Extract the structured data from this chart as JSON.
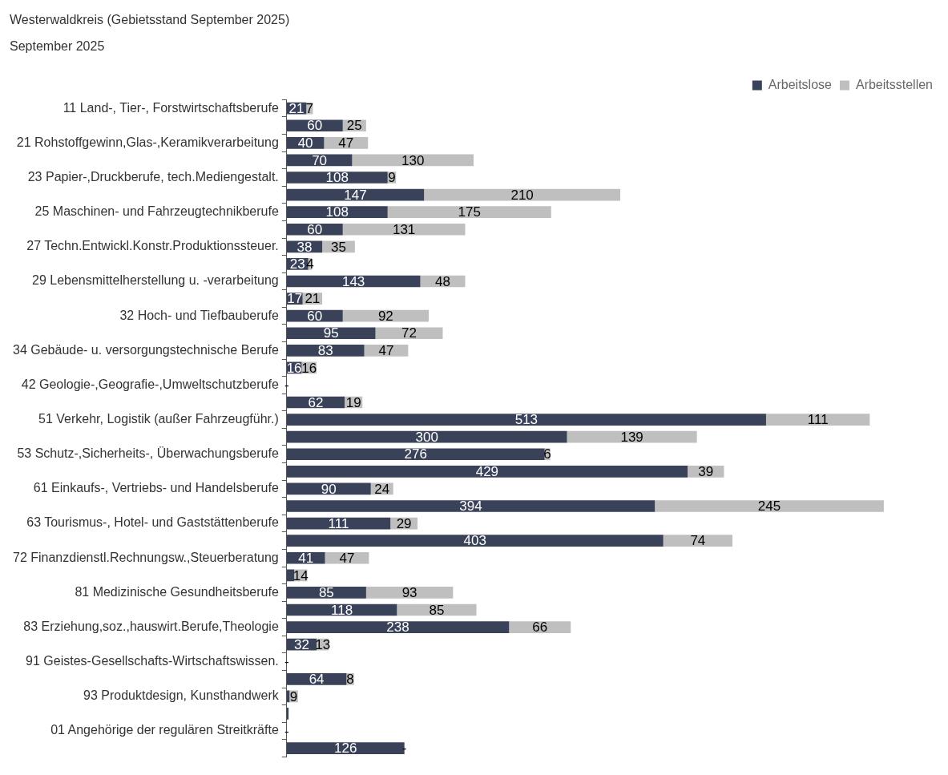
{
  "chart_data": {
    "type": "bar",
    "orientation": "horizontal",
    "stacked": true,
    "legend": "top right",
    "tick_labels": "y",
    "title": "Westerwaldkreis (Gebietsstand September 2025)",
    "subtitle": "September 2025",
    "categories": [
      "11 Land-, Tier-, Forstwirtschaftsberufe",
      null,
      "21 Rohstoffgewinn,Glas-,Keramikverarbeitung",
      null,
      "23 Papier-,Druckberufe, tech.Mediengestalt.",
      null,
      "25 Maschinen- und Fahrzeugtechnikberufe",
      null,
      "27 Techn.Entwickl.Konstr.Produktionssteuer.",
      null,
      "29 Lebensmittelherstellung u. -verarbeitung",
      null,
      "32 Hoch- und Tiefbauberufe",
      null,
      "34 Gebäude- u. versorgungstechnische Berufe",
      null,
      "42 Geologie-,Geografie-,Umweltschutzberufe",
      null,
      "51 Verkehr, Logistik (außer Fahrzeugführ.)",
      null,
      "53 Schutz-,Sicherheits-, Überwachungsberufe",
      null,
      "61 Einkaufs-, Vertriebs- und Handelsberufe",
      null,
      "63 Tourismus-, Hotel- und Gaststättenberufe",
      null,
      "72 Finanzdienstl.Rechnungsw.,Steuerberatung",
      null,
      "81 Medizinische Gesundheitsberufe",
      null,
      "83 Erziehung,soz.,hauswirt.Berufe,Theologie",
      null,
      "91 Geistes-Gesellschafts-Wirtschaftswissen.",
      null,
      "93 Produktdesign, Kunsthandwerk",
      null,
      "01 Angehörige der regulären Streitkräfte",
      null
    ],
    "series": [
      {
        "name": "Arbeitslose",
        "color": "#3a4259",
        "values": [
          21,
          60,
          40,
          70,
          108,
          147,
          108,
          60,
          38,
          23,
          143,
          17,
          60,
          95,
          83,
          16,
          null,
          62,
          513,
          300,
          276,
          429,
          90,
          394,
          111,
          403,
          41,
          8,
          85,
          118,
          238,
          32,
          null,
          64,
          3,
          2,
          null,
          126
        ],
        "value_labels": [
          "21",
          "60",
          "40",
          "70",
          "108",
          "147",
          "108",
          "60",
          "38",
          "23",
          "143",
          "17",
          "60",
          "95",
          "83",
          "16",
          null,
          "62",
          "513",
          "300",
          "276",
          "429",
          "90",
          "394",
          "111",
          "403",
          "41",
          null,
          "85",
          "118",
          "238",
          "32",
          null,
          "64",
          null,
          null,
          null,
          "126"
        ]
      },
      {
        "name": "Arbeitsstellen",
        "color": "#bfbfbf",
        "values": [
          7,
          25,
          47,
          130,
          9,
          210,
          175,
          131,
          35,
          4,
          48,
          21,
          92,
          72,
          47,
          16,
          0,
          19,
          111,
          139,
          6,
          39,
          24,
          245,
          29,
          74,
          47,
          14,
          93,
          85,
          66,
          13,
          0,
          8,
          9,
          null,
          0,
          0
        ],
        "value_labels": [
          "7",
          "25",
          "47",
          "130",
          "9",
          "210",
          "175",
          "131",
          "35",
          "4",
          "48",
          "21",
          "92",
          "72",
          "47",
          "16",
          "-",
          "19",
          "111",
          "139",
          "6",
          "39",
          "24",
          "245",
          "29",
          "74",
          "47",
          "14",
          "93",
          "85",
          "66",
          "13",
          "-",
          "8",
          "9",
          null,
          "-",
          "-"
        ]
      }
    ]
  }
}
